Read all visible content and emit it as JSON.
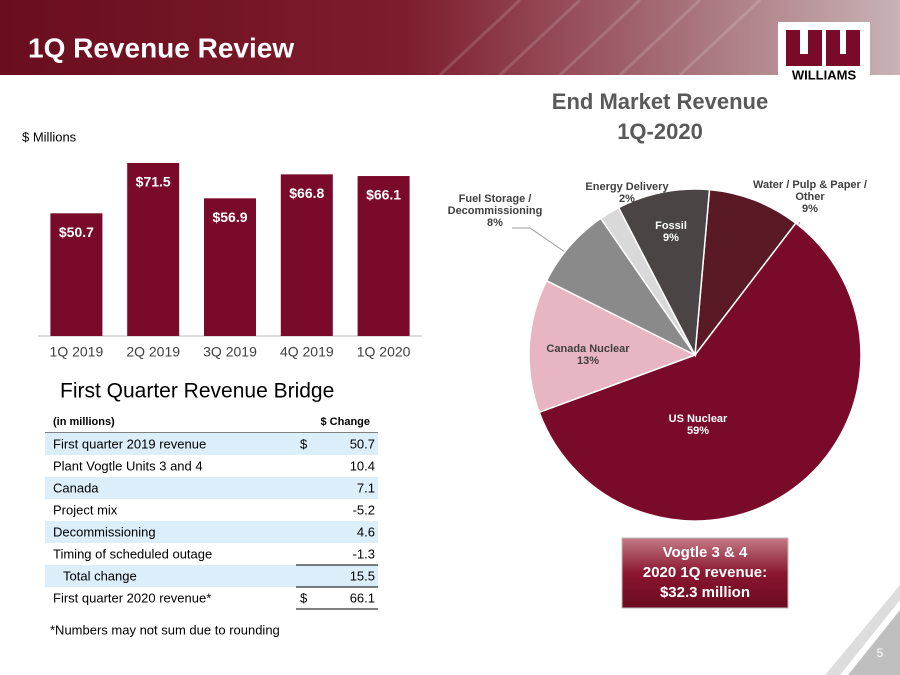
{
  "header": {
    "title": "1Q Revenue Review",
    "logo": "WILLIAMS",
    "page_number": "5"
  },
  "chart_data": [
    {
      "type": "bar",
      "y_label": "$ Millions",
      "categories": [
        "1Q 2019",
        "2Q 2019",
        "3Q 2019",
        "4Q 2019",
        "1Q 2020"
      ],
      "values": [
        50.7,
        71.5,
        56.9,
        66.8,
        66.1
      ],
      "value_labels": [
        "$50.7",
        "$71.5",
        "$56.9",
        "$66.8",
        "$66.1"
      ],
      "color": "#7a0a2a"
    },
    {
      "type": "pie",
      "title": "End Market Revenue",
      "subtitle": "1Q-2020",
      "categories": [
        "Water / Pulp & Paper / Other",
        "US Nuclear",
        "Canada Nuclear",
        "Fuel Storage / Decommissioning",
        "Energy Delivery",
        "Fossil"
      ],
      "values": [
        9,
        59,
        13,
        8,
        2,
        9
      ],
      "value_labels": [
        "9%",
        "59%",
        "13%",
        "8%",
        "2%",
        "9%"
      ],
      "colors": [
        "#5a1a25",
        "#7a0a2a",
        "#e8b6c2",
        "#8a8a8a",
        "#d9d9d9",
        "#4a4444"
      ]
    }
  ],
  "table": {
    "title": "First Quarter Revenue Bridge",
    "header": [
      "(in millions)",
      "$ Change"
    ],
    "rows": [
      {
        "label": "First quarter 2019 revenue",
        "currency": "$",
        "value": "50.7"
      },
      {
        "label": "Plant Vogtle Units 3 and 4",
        "value": "10.4"
      },
      {
        "label": "Canada",
        "value": "7.1"
      },
      {
        "label": "Project mix",
        "value": "-5.2"
      },
      {
        "label": "Decommissioning",
        "value": "4.6"
      },
      {
        "label": "Timing of scheduled outage",
        "value": "-1.3"
      },
      {
        "label": "Total change",
        "value": "15.5"
      },
      {
        "label": "First quarter 2020 revenue*",
        "currency": "$",
        "value": "66.1"
      }
    ],
    "footnote": "*Numbers may not sum due to rounding"
  },
  "callout": {
    "lines": [
      "Vogtle 3 & 4",
      "2020 1Q revenue:",
      "$32.3 million"
    ]
  }
}
